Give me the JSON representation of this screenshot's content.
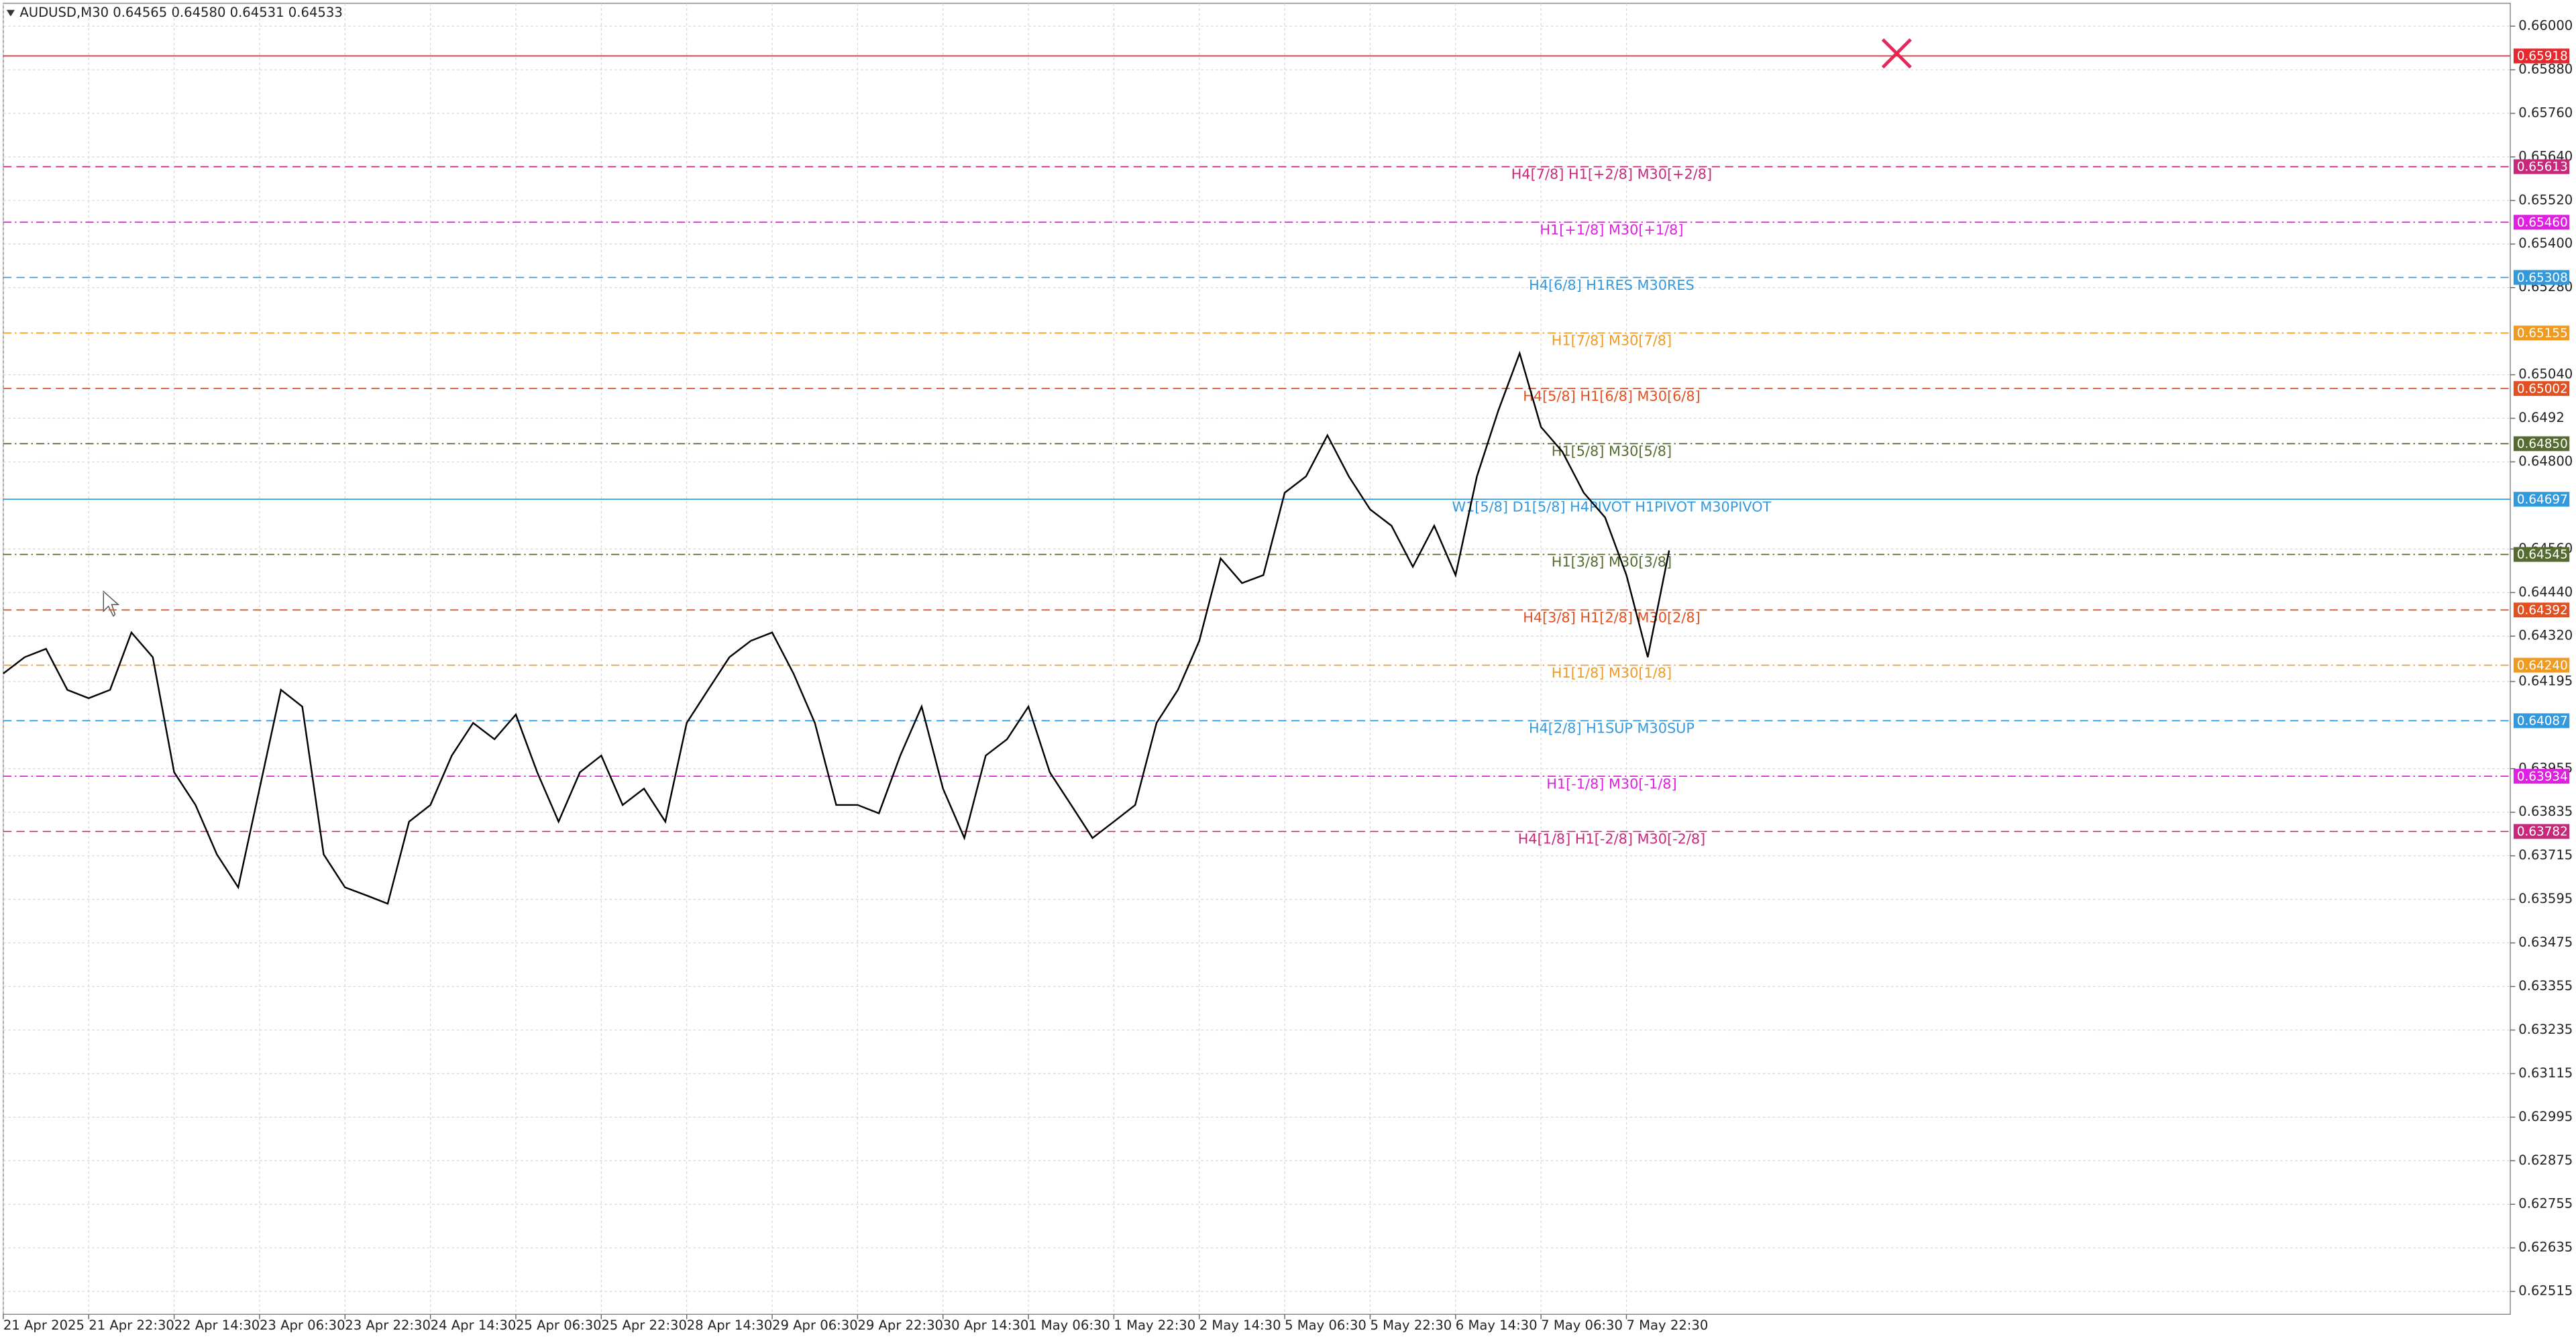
{
  "chart_data": {
    "type": "line",
    "title": "AUDUSD,M30  0.64565 0.64580 0.64531 0.64533",
    "color": "#000000",
    "grid": true,
    "ylim": [
      0.62452,
      0.66063
    ],
    "yticks": [
      {
        "value": 0.66,
        "label": "0.66000"
      },
      {
        "value": 0.6588,
        "label": "0.65880"
      },
      {
        "value": 0.6576,
        "label": "0.65760"
      },
      {
        "value": 0.6564,
        "label": "0.65640"
      },
      {
        "value": 0.6552,
        "label": "0.65520"
      },
      {
        "value": 0.654,
        "label": "0.65400"
      },
      {
        "value": 0.6528,
        "label": "0.65280"
      },
      {
        "value": 0.6504,
        "label": "0.65040"
      },
      0.6492,
      {
        "value": 0.648,
        "label": "0.64800"
      },
      {
        "value": 0.6456,
        "label": "0.64560"
      },
      {
        "value": 0.6444,
        "label": "0.64440"
      },
      {
        "value": 0.6432,
        "label": "0.64320"
      },
      0.64195,
      0.63955,
      0.63835,
      0.63715,
      0.63595,
      0.63475,
      0.63355,
      0.63235,
      0.63115,
      0.62995,
      0.62875,
      0.62755,
      0.62635,
      0.62515
    ],
    "categories": [
      "21 Apr 2025",
      null,
      null,
      null,
      "21 Apr 22:30",
      null,
      null,
      null,
      "22 Apr 14:30",
      null,
      null,
      null,
      "23 Apr 06:30",
      null,
      null,
      null,
      "23 Apr 22:30",
      null,
      null,
      null,
      "24 Apr 14:30",
      null,
      null,
      null,
      "25 Apr 06:30",
      null,
      null,
      null,
      "25 Apr 22:30",
      null,
      null,
      null,
      "28 Apr 14:30",
      null,
      null,
      null,
      "29 Apr 06:30",
      null,
      null,
      null,
      "29 Apr 22:30",
      null,
      null,
      null,
      "30 Apr 14:30",
      null,
      null,
      null,
      "1 May 06:30",
      null,
      null,
      null,
      "1 May 22:30",
      null,
      null,
      null,
      "2 May 14:30",
      null,
      null,
      null,
      "5 May 06:30",
      null,
      null,
      null,
      "5 May 22:30",
      null,
      null,
      null,
      "6 May 14:30",
      null,
      null,
      null,
      "7 May 06:30",
      null,
      null,
      null,
      "7 May 22:30",
      null,
      null
    ],
    "values": [
      0.64217,
      0.64262,
      0.64285,
      0.64172,
      0.64149,
      0.64172,
      0.6433,
      0.64262,
      0.63945,
      0.63855,
      0.63719,
      0.63628,
      0.639,
      0.64172,
      0.64126,
      0.63719,
      0.63628,
      0.63606,
      0.63583,
      0.63809,
      0.63855,
      0.63991,
      0.64081,
      0.64036,
      0.64104,
      0.63945,
      0.63809,
      0.63945,
      0.63991,
      0.63855,
      0.639,
      0.63809,
      0.64081,
      0.64172,
      0.64262,
      0.64307,
      0.6433,
      0.64217,
      0.64081,
      0.63855,
      0.63855,
      0.63832,
      0.63991,
      0.64126,
      0.639,
      0.63764,
      0.63991,
      0.64036,
      0.64126,
      0.63945,
      0.63855,
      0.63764,
      0.63809,
      0.63855,
      0.64081,
      0.64172,
      0.64307,
      0.64534,
      0.64466,
      0.64488,
      0.64715,
      0.6476,
      0.64873,
      0.6476,
      0.64669,
      0.64624,
      0.64511,
      0.64624,
      0.64488,
      0.6476,
      0.64941,
      0.65099,
      0.64896,
      0.64828,
      0.64715,
      0.64647,
      0.64488,
      0.64262,
      0.64556
    ],
    "levels": [
      {
        "value": 0.65918,
        "value_label": "0.65918",
        "color": "#e8262b",
        "style": "solid"
      },
      {
        "value": 0.65613,
        "value_label": "0.65613",
        "label": "H4[7/8] H1[+2/8] M30[+2/8]",
        "color": "#c8287a",
        "style": "dashed"
      },
      {
        "value": 0.6546,
        "value_label": "0.65460",
        "label": "H1[+1/8] M30[+1/8]",
        "color": "#e020e0",
        "style": "dashdot"
      },
      {
        "value": 0.65308,
        "value_label": "0.65308",
        "label": "H4[6/8] H1RES M30RES",
        "color": "#3399dd",
        "style": "dashed"
      },
      {
        "value": 0.65155,
        "value_label": "0.65155",
        "label": "H1[7/8] M30[7/8]",
        "color": "#f09a20",
        "style": "dashdot"
      },
      {
        "value": 0.65002,
        "value_label": "0.65002",
        "label": "H4[5/8] H1[6/8] M30[6/8]",
        "color": "#e05020",
        "style": "dashed"
      },
      {
        "value": 0.6485,
        "value_label": "0.64850",
        "label": "H1[5/8] M30[5/8]",
        "color": "#556b2f",
        "style": "dashdot"
      },
      {
        "value": 0.64697,
        "value_label": "0.64697",
        "label": "W1[5/8] D1[5/8] H4PIVOT H1PIVOT M30PIVOT",
        "color": "#3399dd",
        "style": "solid"
      },
      {
        "value": 0.64545,
        "value_label": "0.64545",
        "label": "H1[3/8] M30[3/8]",
        "color": "#556b2f",
        "style": "dashdot"
      },
      {
        "value": 0.64392,
        "value_label": "0.64392",
        "label": "H4[3/8] H1[2/8] M30[2/8]",
        "color": "#e05020",
        "style": "dashed"
      },
      {
        "value": 0.6424,
        "value_label": "0.64240",
        "label": "H1[1/8] M30[1/8]",
        "color": "#f09a20",
        "style": "dashdot"
      },
      {
        "value": 0.64087,
        "value_label": "0.64087",
        "label": "H4[2/8] H1SUP M30SUP",
        "color": "#3399dd",
        "style": "dashed"
      },
      {
        "value": 0.63934,
        "value_label": "0.63934",
        "label": "H1[-1/8] M30[-1/8]",
        "color": "#e020e0",
        "style": "dashdot"
      },
      {
        "value": 0.63782,
        "value_label": "0.63782",
        "label": "H4[1/8] H1[-2/8] M30[-2/8]",
        "color": "#c8287a",
        "style": "dashed"
      }
    ]
  }
}
